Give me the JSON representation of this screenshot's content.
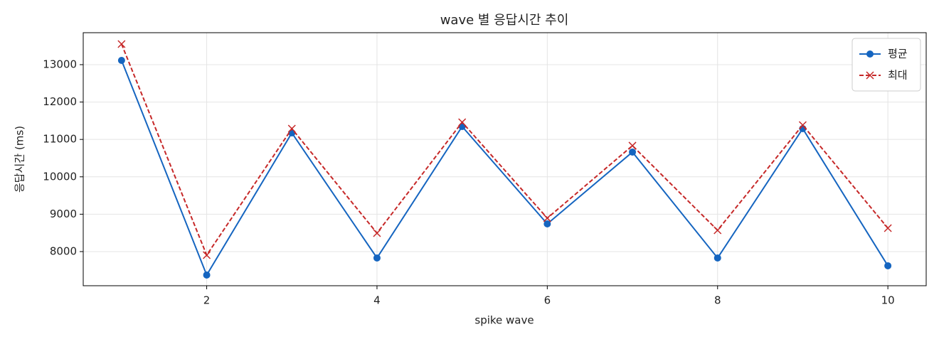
{
  "chart_data": {
    "type": "line",
    "title": "wave 별 응답시간 추이",
    "x_label": "spike wave",
    "y_label": "응답시간 (ms)",
    "x": [
      1,
      2,
      3,
      4,
      5,
      6,
      7,
      8,
      9,
      10
    ],
    "series": [
      {
        "name": "평균",
        "color": "#1565c0",
        "marker": "circle",
        "dash": "solid",
        "values": [
          13114,
          7373,
          11175,
          7829,
          11346,
          8741,
          10662,
          7829,
          11289,
          7620
        ]
      },
      {
        "name": "최대",
        "color": "#c62828",
        "marker": "x",
        "dash": "dashed",
        "values": [
          13551,
          7905,
          11289,
          8494,
          11460,
          8894,
          10833,
          8570,
          11384,
          8627
        ]
      }
    ],
    "xlim": [
      0.55,
      10.45
    ],
    "xticks": [
      2,
      4,
      6,
      8,
      10
    ],
    "ylim": [
      7087,
      13855
    ],
    "yticks": [
      8000,
      9000,
      10000,
      11000,
      12000,
      13000
    ],
    "grid": true,
    "legend": "upper right"
  }
}
